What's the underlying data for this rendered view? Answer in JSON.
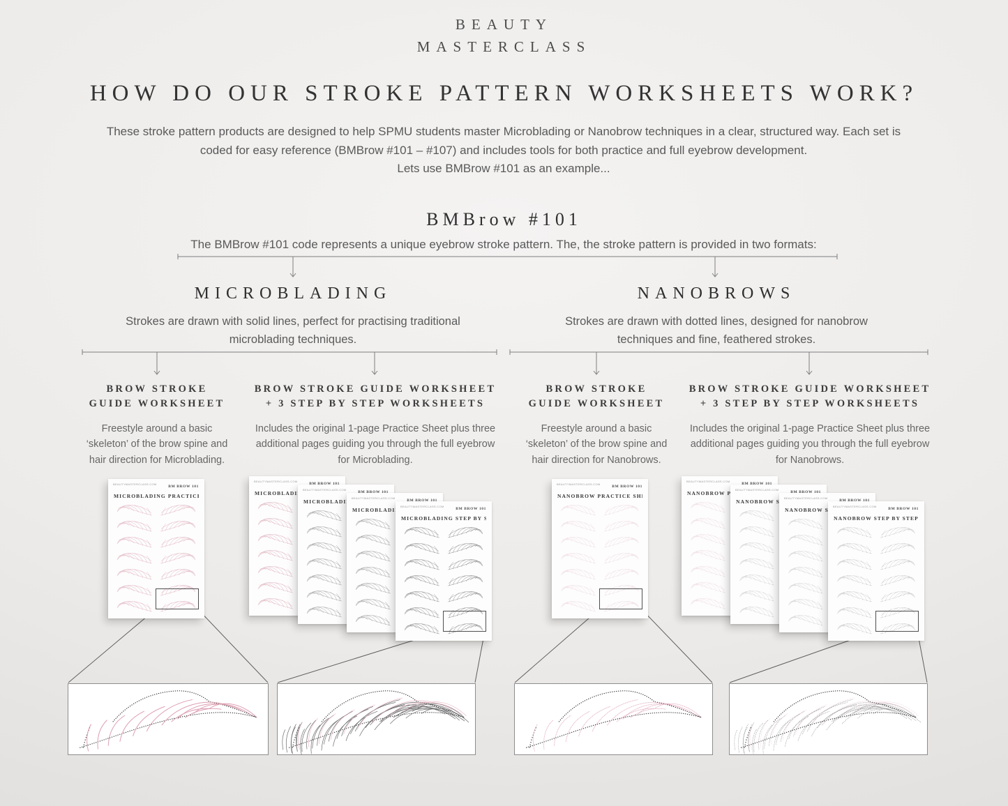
{
  "page": {
    "brand_line1": "BEAUTY",
    "brand_line2": "MASTERCLASS",
    "title": "HOW DO OUR STROKE PATTERN WORKSHEETS WORK?",
    "intro_line1": "These stroke pattern products are designed to help SPMU students master Microblading or Nanobrow techniques in a clear, structured way. Each set is",
    "intro_line2": "coded for easy reference (BMBrow #101 – #107) and includes tools for both practice and full eyebrow development.",
    "intro_line3": "Lets use BMBrow #101 as an example...",
    "code_heading": "BMBrow #101",
    "code_subtitle": "The BMBrow #101 code represents a unique eyebrow stroke pattern. The, the stroke pattern is provided in two formats:"
  },
  "branches": [
    {
      "name": "MICROBLADING",
      "desc_line1": "Strokes are drawn with solid lines, perfect for practising traditional",
      "desc_line2": "microblading techniques."
    },
    {
      "name": "NANOBROWS",
      "desc_line1": "Strokes are drawn with dotted lines, designed for nanobrow",
      "desc_line2": "techniques and fine, feathered strokes."
    }
  ],
  "columns": [
    {
      "heading_line1": "BROW STROKE",
      "heading_line2": "GUIDE WORKSHEET",
      "desc_line1": "Freestyle around a basic",
      "desc_line2": "‘skeleton’ of the brow spine and",
      "desc_line3": "hair direction for Microblading."
    },
    {
      "heading_line1": "BROW STROKE GUIDE WORKSHEET",
      "heading_line2": "+ 3 STEP BY STEP WORKSHEETS",
      "desc_line1": "Includes the original 1-page Practice Sheet plus three",
      "desc_line2": "additional pages guiding you through the full eyebrow",
      "desc_line3": "for Microblading."
    },
    {
      "heading_line1": "BROW STROKE",
      "heading_line2": "GUIDE WORKSHEET",
      "desc_line1": "Freestyle around a basic",
      "desc_line2": "‘skeleton’ of the brow spine and",
      "desc_line3": "hair direction for Nanobrows."
    },
    {
      "heading_line1": "BROW STROKE GUIDE WORKSHEET",
      "heading_line2": "+ 3 STEP BY STEP WORKSHEETS",
      "desc_line1": "Includes the original 1-page Practice Sheet plus three",
      "desc_line2": "additional pages guiding you through the full eyebrow",
      "desc_line3": "for Nanobrows."
    }
  ],
  "sheets": {
    "code_label": "BM BROW 101",
    "site_label": "BEAUTYMASTERCLASS.COM",
    "titles": {
      "microblading_practice": "MICROBLADING PRACTICE SHEET",
      "microblading_step": "MICROBLADING STEP BY STEP",
      "nanobrow_practice": "NANOBROW PRACTICE SHEET",
      "nanobrow_step": "NANOBROW STEP BY STEP"
    }
  },
  "colors": {
    "background": "#eceae8",
    "heading_text": "#333333",
    "body_text": "#595959",
    "stroke_pink": "#dc9db0",
    "stroke_gray": "#6e6e6e",
    "outline_black": "#2b2b2b",
    "sheet_white": "#fdfdfd"
  }
}
